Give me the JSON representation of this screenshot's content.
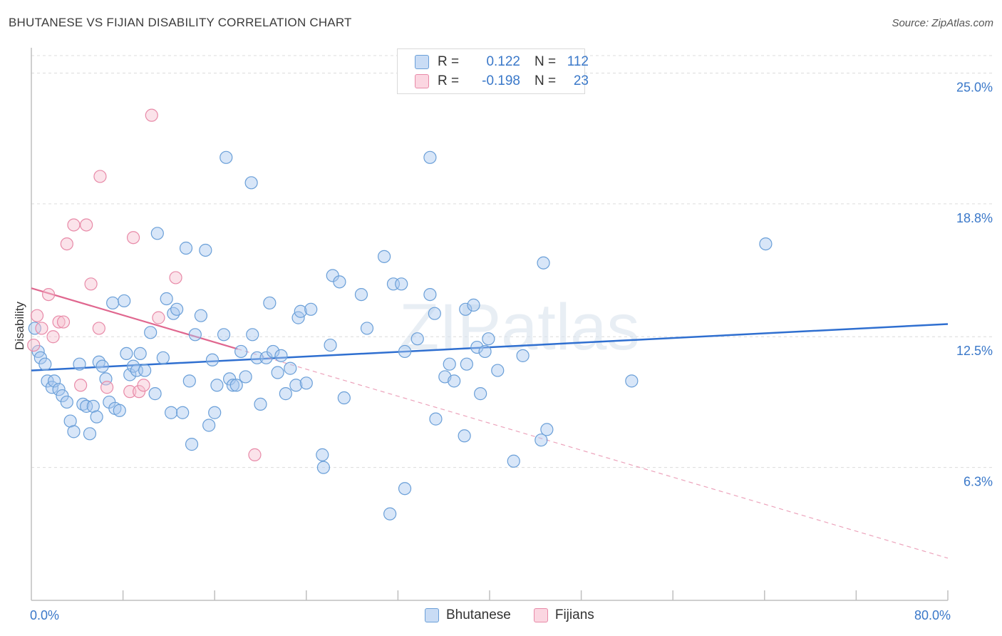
{
  "title": "BHUTANESE VS FIJIAN DISABILITY CORRELATION CHART",
  "source": "Source: ZipAtlas.com",
  "watermark": "ZIPatlas",
  "legend": {
    "rows": [
      {
        "r_label": "R =",
        "r_value": "0.122",
        "n_label": "N =",
        "n_value": "112",
        "color": "#a8c8f0",
        "border": "#6a9fd8"
      },
      {
        "r_label": "R =",
        "r_value": "-0.198",
        "n_label": "N =",
        "n_value": "23",
        "color": "#f7c0d0",
        "border": "#e88aa8"
      }
    ]
  },
  "bottom_legend": [
    {
      "label": "Bhutanese",
      "color": "#a8c8f0",
      "border": "#6a9fd8"
    },
    {
      "label": "Fijians",
      "color": "#f7c0d0",
      "border": "#e88aa8"
    }
  ],
  "chart_data": {
    "type": "scatter",
    "ylabel": "Disability",
    "xlim": [
      0,
      80
    ],
    "ylim": [
      0,
      26.2
    ],
    "x_tick_labels": [
      {
        "value": 0,
        "label": "0.0%"
      },
      {
        "value": 80,
        "label": "80.0%"
      }
    ],
    "y_tick_labels": [
      {
        "value": 6.3,
        "label": "6.3%"
      },
      {
        "value": 12.5,
        "label": "12.5%"
      },
      {
        "value": 18.8,
        "label": "18.8%"
      },
      {
        "value": 25.0,
        "label": "25.0%"
      }
    ],
    "series": [
      {
        "name": "Bhutanese",
        "color": "#6a9fd8",
        "fill": "#a8c8f0",
        "trend": {
          "x": [
            0,
            80
          ],
          "y": [
            10.9,
            13.1
          ],
          "color": "#2f6fd0"
        },
        "points": [
          [
            0.3,
            12.9
          ],
          [
            0.6,
            11.8
          ],
          [
            0.8,
            11.5
          ],
          [
            1.2,
            11.2
          ],
          [
            1.4,
            10.4
          ],
          [
            1.8,
            10.1
          ],
          [
            2.0,
            10.4
          ],
          [
            2.4,
            10.0
          ],
          [
            2.7,
            9.7
          ],
          [
            3.1,
            9.4
          ],
          [
            3.4,
            8.5
          ],
          [
            3.7,
            8.0
          ],
          [
            4.2,
            11.2
          ],
          [
            4.5,
            9.3
          ],
          [
            4.8,
            9.2
          ],
          [
            5.1,
            7.9
          ],
          [
            5.4,
            9.2
          ],
          [
            5.7,
            8.7
          ],
          [
            5.9,
            11.3
          ],
          [
            6.2,
            11.1
          ],
          [
            6.5,
            10.5
          ],
          [
            6.8,
            9.4
          ],
          [
            7.1,
            14.1
          ],
          [
            7.3,
            9.1
          ],
          [
            7.7,
            9.0
          ],
          [
            8.1,
            14.2
          ],
          [
            8.3,
            11.7
          ],
          [
            8.6,
            10.7
          ],
          [
            8.9,
            11.1
          ],
          [
            9.2,
            10.9
          ],
          [
            9.5,
            11.7
          ],
          [
            9.9,
            10.9
          ],
          [
            10.4,
            12.7
          ],
          [
            10.8,
            9.8
          ],
          [
            11.0,
            17.4
          ],
          [
            11.5,
            11.5
          ],
          [
            11.8,
            14.3
          ],
          [
            12.2,
            8.9
          ],
          [
            12.4,
            13.6
          ],
          [
            12.7,
            13.8
          ],
          [
            13.2,
            8.9
          ],
          [
            13.5,
            16.7
          ],
          [
            13.8,
            10.4
          ],
          [
            14.0,
            7.4
          ],
          [
            14.3,
            12.6
          ],
          [
            14.8,
            13.5
          ],
          [
            15.2,
            16.6
          ],
          [
            15.5,
            8.3
          ],
          [
            15.8,
            11.4
          ],
          [
            16.0,
            8.9
          ],
          [
            16.2,
            10.2
          ],
          [
            16.8,
            12.6
          ],
          [
            17.0,
            21.0
          ],
          [
            17.3,
            10.5
          ],
          [
            17.6,
            10.2
          ],
          [
            17.9,
            10.2
          ],
          [
            18.3,
            11.8
          ],
          [
            18.7,
            10.6
          ],
          [
            19.2,
            19.8
          ],
          [
            19.3,
            12.6
          ],
          [
            19.7,
            11.5
          ],
          [
            20.0,
            9.3
          ],
          [
            20.5,
            11.5
          ],
          [
            20.8,
            14.1
          ],
          [
            21.1,
            11.8
          ],
          [
            21.5,
            10.8
          ],
          [
            21.8,
            11.6
          ],
          [
            22.2,
            9.8
          ],
          [
            22.6,
            11.0
          ],
          [
            23.1,
            10.2
          ],
          [
            23.3,
            13.4
          ],
          [
            23.5,
            13.7
          ],
          [
            24.0,
            10.3
          ],
          [
            24.4,
            13.8
          ],
          [
            25.4,
            6.9
          ],
          [
            25.5,
            6.3
          ],
          [
            26.1,
            12.1
          ],
          [
            26.3,
            15.4
          ],
          [
            26.9,
            15.1
          ],
          [
            27.3,
            9.6
          ],
          [
            28.8,
            14.5
          ],
          [
            29.3,
            12.9
          ],
          [
            30.8,
            16.3
          ],
          [
            31.3,
            4.1
          ],
          [
            31.6,
            15.0
          ],
          [
            32.3,
            15.0
          ],
          [
            32.6,
            11.8
          ],
          [
            32.6,
            5.3
          ],
          [
            33.7,
            12.4
          ],
          [
            34.8,
            14.5
          ],
          [
            35.2,
            13.6
          ],
          [
            34.8,
            21.0
          ],
          [
            35.3,
            8.6
          ],
          [
            36.1,
            10.6
          ],
          [
            36.5,
            11.2
          ],
          [
            36.9,
            10.4
          ],
          [
            37.8,
            7.8
          ],
          [
            37.9,
            13.8
          ],
          [
            38.0,
            11.2
          ],
          [
            38.6,
            14.0
          ],
          [
            38.9,
            12.0
          ],
          [
            39.6,
            11.8
          ],
          [
            39.2,
            9.8
          ],
          [
            39.9,
            12.4
          ],
          [
            40.7,
            10.9
          ],
          [
            42.1,
            6.6
          ],
          [
            42.9,
            11.6
          ],
          [
            44.5,
            7.6
          ],
          [
            44.7,
            16.0
          ],
          [
            45.0,
            8.1
          ],
          [
            64.1,
            16.9
          ],
          [
            52.4,
            10.4
          ]
        ]
      },
      {
        "name": "Fijians",
        "color": "#e88aa8",
        "fill": "#f7c0d0",
        "trend": {
          "x": [
            0,
            80
          ],
          "y": [
            14.8,
            2.0
          ],
          "solid_until_x": 18,
          "color": "#e0678f"
        },
        "points": [
          [
            0.2,
            12.1
          ],
          [
            0.5,
            13.5
          ],
          [
            0.9,
            12.9
          ],
          [
            1.5,
            14.5
          ],
          [
            1.9,
            12.5
          ],
          [
            2.4,
            13.2
          ],
          [
            2.8,
            13.2
          ],
          [
            3.1,
            16.9
          ],
          [
            3.7,
            17.8
          ],
          [
            4.3,
            10.2
          ],
          [
            4.8,
            17.8
          ],
          [
            5.2,
            15.0
          ],
          [
            5.9,
            12.9
          ],
          [
            6.0,
            20.1
          ],
          [
            6.6,
            10.1
          ],
          [
            8.6,
            9.9
          ],
          [
            8.9,
            17.2
          ],
          [
            9.4,
            9.9
          ],
          [
            9.8,
            10.2
          ],
          [
            10.5,
            23.0
          ],
          [
            11.1,
            13.4
          ],
          [
            12.6,
            15.3
          ],
          [
            19.5,
            6.9
          ]
        ]
      }
    ]
  }
}
